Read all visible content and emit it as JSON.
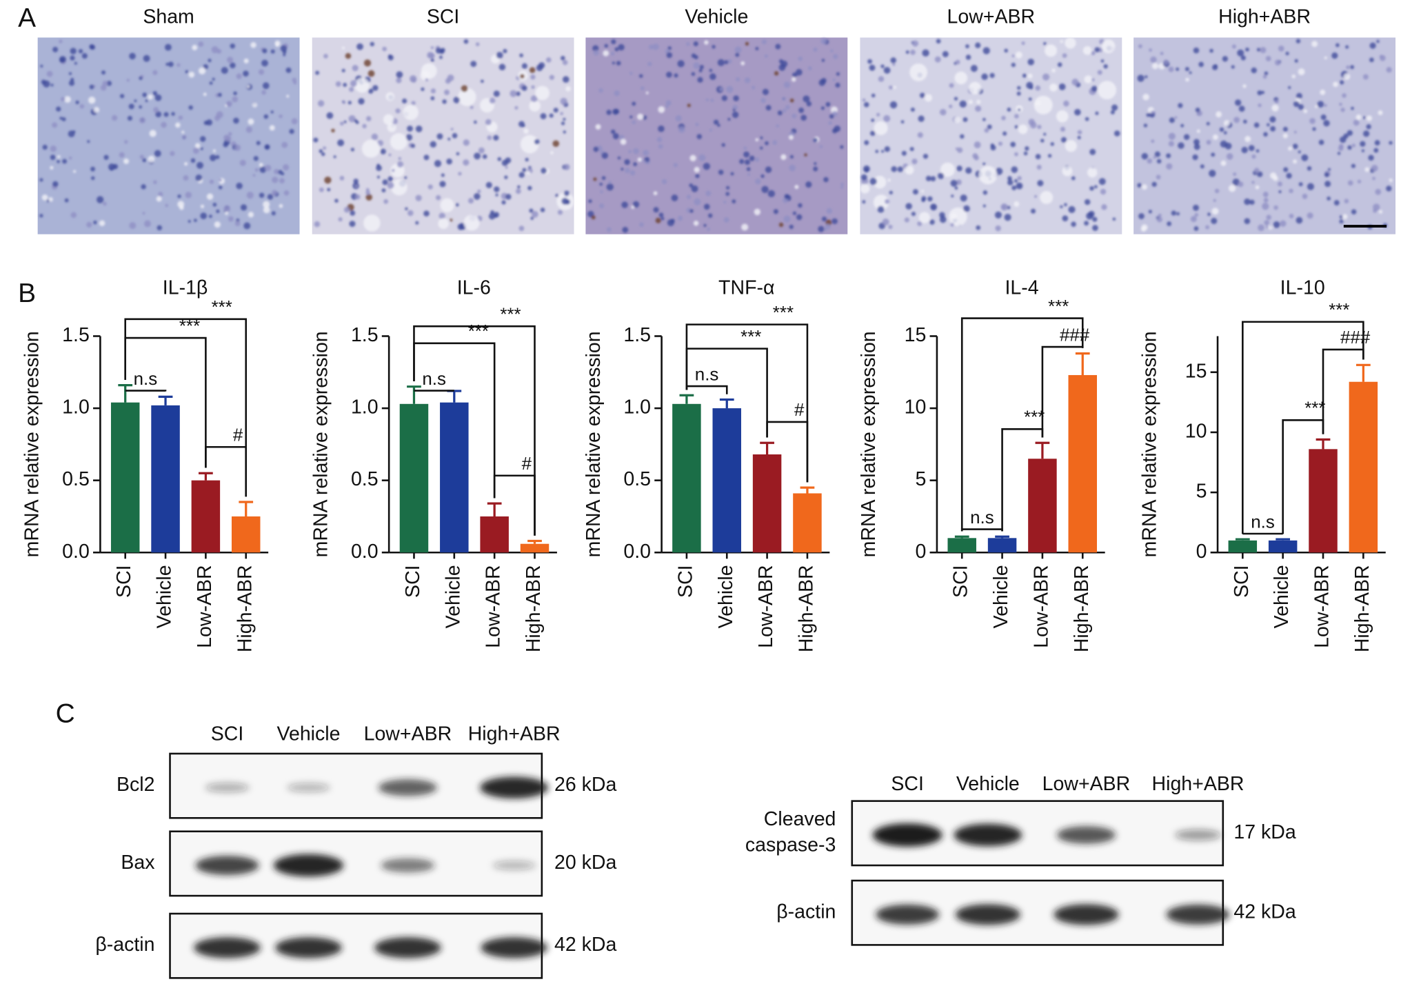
{
  "panel_labels": [
    "A",
    "B",
    "C"
  ],
  "histology": {
    "groups": [
      "Sham",
      "SCI",
      "Vehicle",
      "Low+ABR",
      "High+ABR"
    ]
  },
  "chart_data": [
    {
      "type": "bar",
      "title": "IL-1β",
      "y_label": "mRNA relative expression",
      "categories": [
        "SCI",
        "Vehicle",
        "Low-ABR",
        "High-ABR"
      ],
      "values": [
        1.04,
        1.02,
        0.5,
        0.25
      ],
      "errors": [
        0.12,
        0.06,
        0.05,
        0.1
      ],
      "colors": [
        "#1b6e47",
        "#1d3c9a",
        "#9a1b22",
        "#f0681c"
      ],
      "ylim": [
        0,
        1.5
      ],
      "yticks": [
        {
          "value": 0,
          "label": "0.0"
        },
        0.5,
        {
          "value": 1,
          "label": "1.0"
        },
        1.5
      ],
      "annotations": [
        "n.s",
        "***",
        "***",
        "#"
      ]
    },
    {
      "type": "bar",
      "title": "IL-6",
      "y_label": "mRNA relative expression",
      "categories": [
        "SCI",
        "Vehicle",
        "Low-ABR",
        "High-ABR"
      ],
      "values": [
        1.03,
        1.04,
        0.25,
        0.06
      ],
      "errors": [
        0.12,
        0.08,
        0.09,
        0.02
      ],
      "colors": [
        "#1b6e47",
        "#1d3c9a",
        "#9a1b22",
        "#f0681c"
      ],
      "ylim": [
        0,
        1.5
      ],
      "yticks": [
        {
          "value": 0,
          "label": "0.0"
        },
        0.5,
        {
          "value": 1,
          "label": "1.0"
        },
        1.5
      ],
      "annotations": [
        "n.s",
        "***",
        "***",
        "#"
      ]
    },
    {
      "type": "bar",
      "title": "TNF-α",
      "y_label": "mRNA relative expression",
      "categories": [
        "SCI",
        "Vehicle",
        "Low-ABR",
        "High-ABR"
      ],
      "values": [
        1.03,
        1.0,
        0.68,
        0.41
      ],
      "errors": [
        0.06,
        0.06,
        0.08,
        0.04
      ],
      "colors": [
        "#1b6e47",
        "#1d3c9a",
        "#9a1b22",
        "#f0681c"
      ],
      "ylim": [
        0,
        1.5
      ],
      "yticks": [
        {
          "value": 0,
          "label": "0.0"
        },
        0.5,
        {
          "value": 1,
          "label": "1.0"
        },
        1.5
      ],
      "annotations": [
        "n.s",
        "***",
        "***",
        "#"
      ]
    },
    {
      "type": "bar",
      "title": "IL-4",
      "y_label": "mRNA relative expression",
      "categories": [
        "SCI",
        "Vehicle",
        "Low-ABR",
        "High-ABR"
      ],
      "values": [
        1.0,
        1.0,
        6.5,
        12.3
      ],
      "errors": [
        0.1,
        0.1,
        1.1,
        1.5
      ],
      "colors": [
        "#1b6e47",
        "#1d3c9a",
        "#9a1b22",
        "#f0681c"
      ],
      "ylim": [
        0,
        15
      ],
      "yticks": [
        0,
        5,
        10,
        15
      ],
      "annotations": [
        "n.s",
        "***",
        "###",
        "***"
      ]
    },
    {
      "type": "bar",
      "title": "IL-10",
      "y_label": "mRNA relative expression",
      "categories": [
        "SCI",
        "Vehicle",
        "Low-ABR",
        "High-ABR"
      ],
      "values": [
        1.0,
        1.0,
        8.6,
        14.2
      ],
      "errors": [
        0.1,
        0.1,
        0.8,
        1.4
      ],
      "colors": [
        "#1b6e47",
        "#1d3c9a",
        "#9a1b22",
        "#f0681c"
      ],
      "ylim": [
        0,
        18
      ],
      "yticks": [
        0,
        5,
        10,
        15
      ],
      "annotations": [
        "n.s",
        "***",
        "###",
        "***"
      ]
    }
  ],
  "western_blot": [
    {
      "lanes": [
        "SCI",
        "Vehicle",
        "Low+ABR",
        "High+ABR"
      ],
      "rows": [
        {
          "protein": [
            "Bcl2"
          ],
          "size": "26 kDa"
        },
        {
          "protein": [
            "Bax"
          ],
          "size": "20 kDa"
        },
        {
          "protein": [
            "β-actin"
          ],
          "size": "42 kDa"
        }
      ]
    },
    {
      "lanes": [
        "SCI",
        "Vehicle",
        "Low+ABR",
        "High+ABR"
      ],
      "rows": [
        {
          "protein": [
            "Cleaved",
            "caspase-3"
          ],
          "size": "17 kDa"
        },
        {
          "protein": [
            "β-actin"
          ],
          "size": "42 kDa"
        }
      ]
    }
  ]
}
